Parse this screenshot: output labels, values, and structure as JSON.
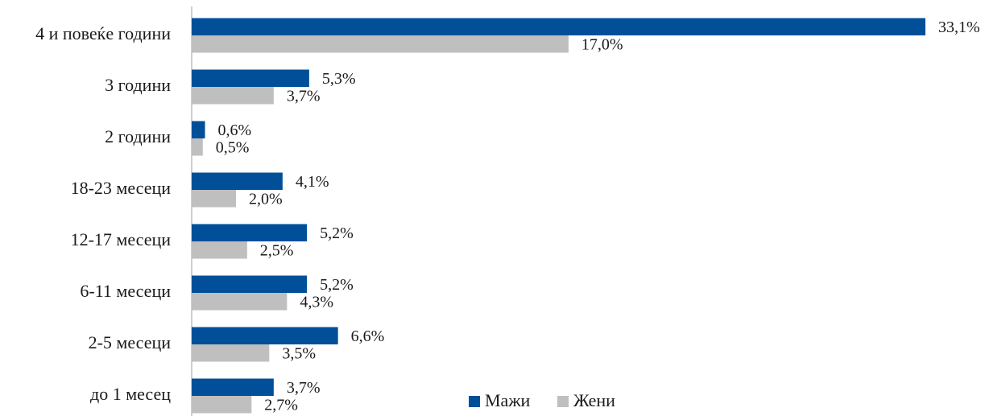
{
  "chart_data": {
    "type": "bar",
    "orientation": "horizontal",
    "categories": [
      "4 и повеќе години",
      "3 години",
      "2 години",
      "18-23 месеци",
      "12-17 месеци",
      "6-11 месеци",
      "2-5 месеци",
      "до 1 месец"
    ],
    "series": [
      {
        "name": "Мажи",
        "color": "#004f98",
        "values": [
          33.1,
          5.3,
          0.6,
          4.1,
          5.2,
          5.2,
          6.6,
          3.7
        ],
        "value_labels": [
          "33,1%",
          "5,3%",
          "0,6%",
          "4,1%",
          "5,2%",
          "5,2%",
          "6,6%",
          "3,7%"
        ]
      },
      {
        "name": "Жени",
        "color": "#bfbfbf",
        "values": [
          17.0,
          3.7,
          0.5,
          2.0,
          2.5,
          4.3,
          3.5,
          2.7
        ],
        "value_labels": [
          "17,0%",
          "3,7%",
          "0,5%",
          "2,0%",
          "2,5%",
          "4,3%",
          "3,5%",
          "2,7%"
        ]
      }
    ],
    "legend": "bottom"
  }
}
